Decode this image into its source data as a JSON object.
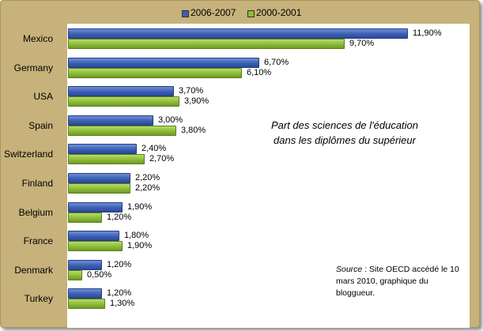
{
  "chart_data": {
    "type": "bar",
    "orientation": "horizontal",
    "title": "Part des sciences de l'éducation dans les diplômes du supérieur",
    "categories": [
      "Mexico",
      "Germany",
      "USA",
      "Spain",
      "Switzerland",
      "Finland",
      "Belgium",
      "France",
      "Denmark",
      "Turkey"
    ],
    "series": [
      {
        "name": "2006-2007",
        "color": "#3b5fb4",
        "values": [
          11.9,
          6.7,
          3.7,
          3.0,
          2.4,
          2.2,
          1.9,
          1.8,
          1.2,
          1.2
        ],
        "labels": [
          "11,90%",
          "6,70%",
          "3,70%",
          "3,00%",
          "2,40%",
          "2,20%",
          "1,90%",
          "1,80%",
          "1,20%",
          "1,20%"
        ]
      },
      {
        "name": "2000-2001",
        "color": "#8cbc36",
        "values": [
          9.7,
          6.1,
          3.9,
          3.8,
          2.7,
          2.2,
          1.2,
          1.9,
          0.5,
          1.3
        ],
        "labels": [
          "9,70%",
          "6,10%",
          "3,90%",
          "3,80%",
          "2,70%",
          "2,20%",
          "1,20%",
          "1,90%",
          "0,50%",
          "1,30%"
        ]
      }
    ],
    "xlim": [
      0,
      13
    ],
    "grid": false,
    "legend_position": "top",
    "annotation": {
      "source_label": "Source",
      "source_text": " : Site OECD accédé le 10 mars 2010, graphique du bloggueur."
    }
  }
}
